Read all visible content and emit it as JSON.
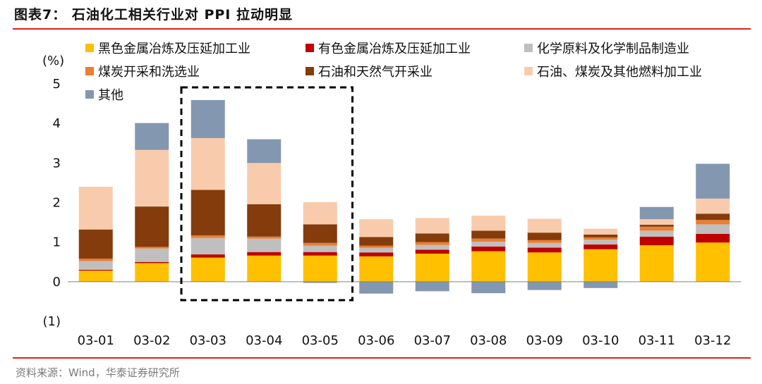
{
  "title": "图表7：  石油化工相关行业对 PPI 拉动明显",
  "source": "资料来源：Wind，华泰证券研究所",
  "colors": {
    "rule": "#e0201b"
  },
  "chart_data": {
    "type": "bar",
    "stacked": true,
    "ylabel": "(%)",
    "ylim": [
      -1,
      5
    ],
    "yticks": [
      -1,
      0,
      1,
      2,
      3,
      4,
      5
    ],
    "ytick_labels": [
      "(1)",
      "0",
      "1",
      "2",
      "3",
      "4",
      "5"
    ],
    "categories": [
      "03-01",
      "03-02",
      "03-03",
      "03-04",
      "03-05",
      "03-06",
      "03-07",
      "03-08",
      "03-09",
      "03-10",
      "03-11",
      "03-12"
    ],
    "legend_position": "top",
    "highlight_box": {
      "from_category": "03-03",
      "to_category": "03-05",
      "style": "dashed"
    },
    "series": [
      {
        "name": "黑色金属冶炼及压延加工业",
        "color": "#ffc000",
        "values": [
          0.28,
          0.47,
          0.61,
          0.66,
          0.66,
          0.64,
          0.71,
          0.77,
          0.74,
          0.82,
          0.92,
          0.99
        ]
      },
      {
        "name": "有色金属冶炼及压延加工业",
        "color": "#c00000",
        "values": [
          0.02,
          0.03,
          0.08,
          0.09,
          0.09,
          0.1,
          0.1,
          0.12,
          0.12,
          0.12,
          0.22,
          0.22
        ]
      },
      {
        "name": "化学原料及化学制品制造业",
        "color": "#bfbfbf",
        "values": [
          0.22,
          0.34,
          0.42,
          0.34,
          0.16,
          0.12,
          0.12,
          0.12,
          0.12,
          0.12,
          0.15,
          0.24
        ]
      },
      {
        "name": "煤炭开采和洗选业",
        "color": "#ed7d31",
        "values": [
          0.06,
          0.04,
          0.06,
          0.05,
          0.07,
          0.05,
          0.07,
          0.08,
          0.07,
          0.06,
          0.1,
          0.11
        ]
      },
      {
        "name": "石油和天然气开采业",
        "color": "#843c0c",
        "values": [
          0.74,
          1.02,
          1.15,
          0.82,
          0.47,
          0.22,
          0.22,
          0.2,
          0.19,
          0.07,
          0.05,
          0.16
        ]
      },
      {
        "name": "石油、煤炭及其他燃料加工业",
        "color": "#f8cbad",
        "values": [
          1.08,
          1.43,
          1.31,
          1.04,
          0.56,
          0.45,
          0.39,
          0.38,
          0.35,
          0.15,
          0.14,
          0.38
        ]
      },
      {
        "name": "其他",
        "color": "#8497b0",
        "values": [
          0.0,
          0.68,
          0.96,
          0.6,
          -0.03,
          -0.3,
          -0.24,
          -0.29,
          -0.21,
          -0.16,
          0.31,
          0.88
        ]
      }
    ]
  }
}
